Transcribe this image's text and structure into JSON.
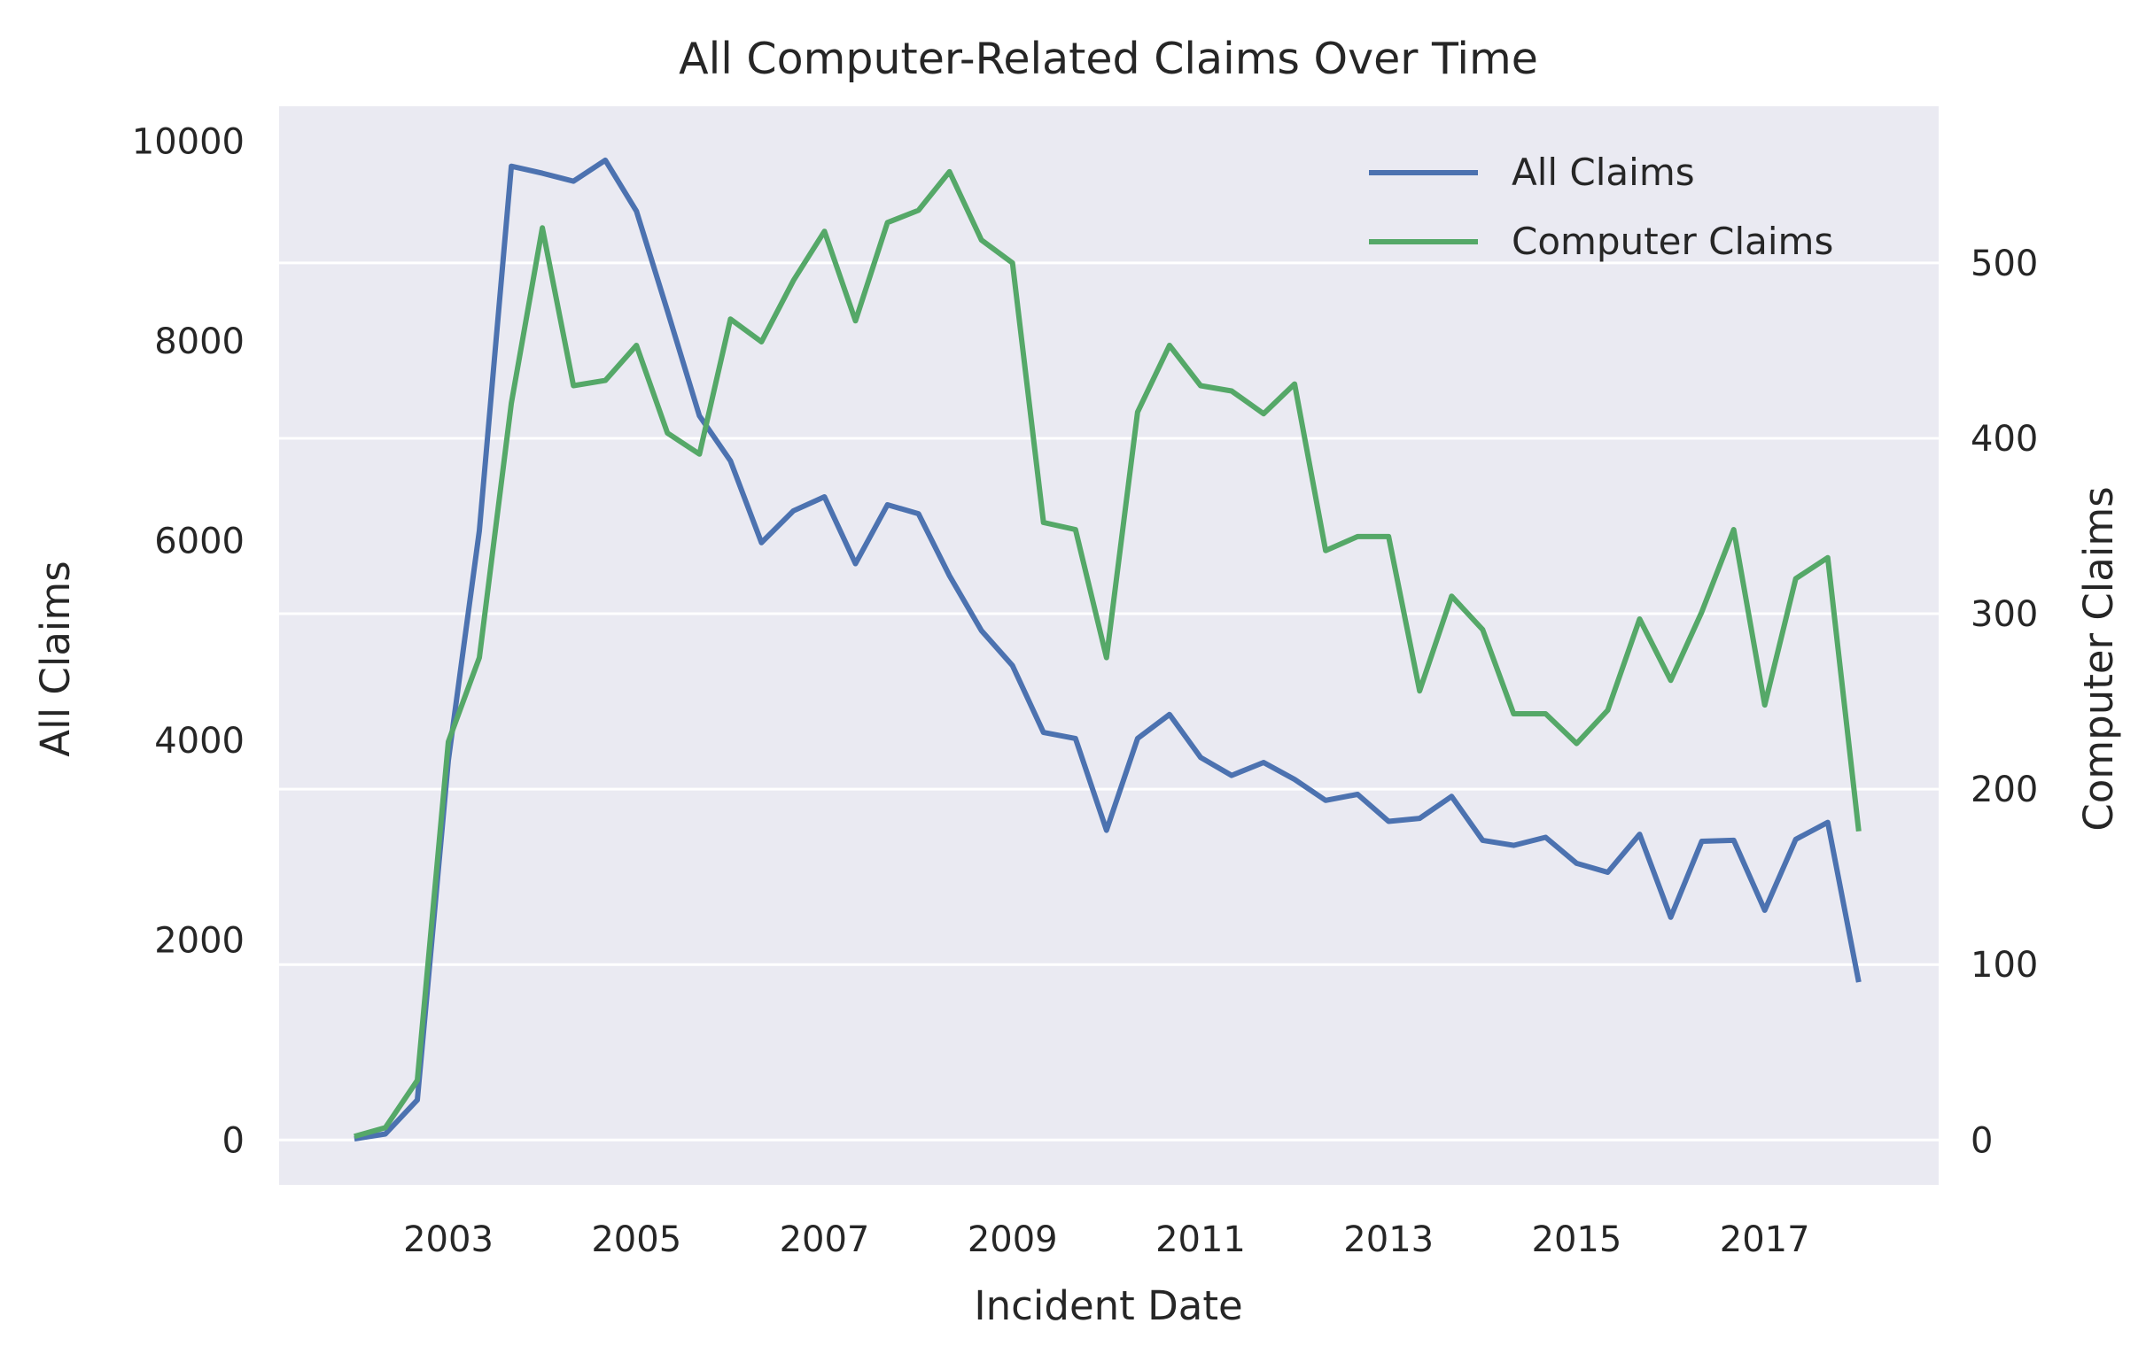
{
  "chart_data": {
    "type": "line",
    "title": "All Computer-Related Claims Over Time",
    "xlabel": "Incident Date",
    "ylabel_left": "All Claims",
    "ylabel_right": "Computer Claims",
    "xlim": [
      2001.2,
      2018.85
    ],
    "ylim_left": [
      -450,
      10350
    ],
    "ylim_right": [
      -25.6,
      589.3
    ],
    "x_ticks": [
      2003,
      2005,
      2007,
      2009,
      2011,
      2013,
      2015,
      2017
    ],
    "y_ticks_left": [
      0,
      2000,
      4000,
      6000,
      8000,
      10000
    ],
    "y_ticks_right": [
      0,
      100,
      200,
      300,
      400,
      500
    ],
    "grid": "right-axis horizontal lines",
    "legend_position": "top-right",
    "colors": {
      "all_claims": "#4c72b0",
      "computer_claims": "#55a868",
      "plot_bg": "#eaeaf2",
      "grid": "#ffffff",
      "text": "#262626"
    },
    "series": [
      {
        "name": "All Claims",
        "axis": "left",
        "x": [
          2002.0,
          2002.33,
          2002.67,
          2003.0,
          2003.33,
          2003.67,
          2004.0,
          2004.33,
          2004.67,
          2005.0,
          2005.33,
          2005.67,
          2006.0,
          2006.33,
          2006.67,
          2007.0,
          2007.33,
          2007.67,
          2008.0,
          2008.33,
          2008.67,
          2009.0,
          2009.33,
          2009.67,
          2010.0,
          2010.33,
          2010.67,
          2011.0,
          2011.33,
          2011.67,
          2012.0,
          2012.33,
          2012.67,
          2013.0,
          2013.33,
          2013.67,
          2014.0,
          2014.33,
          2014.67,
          2015.0,
          2015.33,
          2015.67,
          2016.0,
          2016.33,
          2016.67,
          2017.0,
          2017.33,
          2017.67,
          2018.0
        ],
        "y": [
          10,
          60,
          400,
          3800,
          6100,
          9750,
          9680,
          9600,
          9810,
          9300,
          8300,
          7250,
          6800,
          5980,
          6300,
          6440,
          5770,
          6360,
          6270,
          5650,
          5100,
          4750,
          4080,
          4020,
          3100,
          4020,
          4260,
          3830,
          3650,
          3780,
          3610,
          3400,
          3460,
          3190,
          3220,
          3440,
          3000,
          2950,
          3030,
          2770,
          2680,
          3060,
          2230,
          2990,
          3000,
          2300,
          3010,
          3180,
          1580
        ]
      },
      {
        "name": "Computer Claims",
        "axis": "right",
        "x": [
          2002.0,
          2002.33,
          2002.67,
          2003.0,
          2003.33,
          2003.67,
          2004.0,
          2004.33,
          2004.67,
          2005.0,
          2005.33,
          2005.67,
          2006.0,
          2006.33,
          2006.67,
          2007.0,
          2007.33,
          2007.67,
          2008.0,
          2008.33,
          2008.67,
          2009.0,
          2009.33,
          2009.67,
          2010.0,
          2010.33,
          2010.67,
          2011.0,
          2011.33,
          2011.67,
          2012.0,
          2012.33,
          2012.67,
          2013.0,
          2013.33,
          2013.67,
          2014.0,
          2014.33,
          2014.67,
          2015.0,
          2015.33,
          2015.67,
          2016.0,
          2016.33,
          2016.67,
          2017.0,
          2017.33,
          2017.67,
          2018.0
        ],
        "y": [
          2,
          7,
          34,
          227,
          275,
          420,
          520,
          430,
          433,
          453,
          403,
          391,
          468,
          455,
          490,
          518,
          467,
          523,
          530,
          552,
          513,
          500,
          352,
          348,
          275,
          415,
          453,
          430,
          427,
          414,
          431,
          336,
          344,
          344,
          256,
          310,
          291,
          243,
          243,
          226,
          245,
          297,
          262,
          301,
          348,
          248,
          320,
          332,
          176
        ]
      }
    ]
  }
}
